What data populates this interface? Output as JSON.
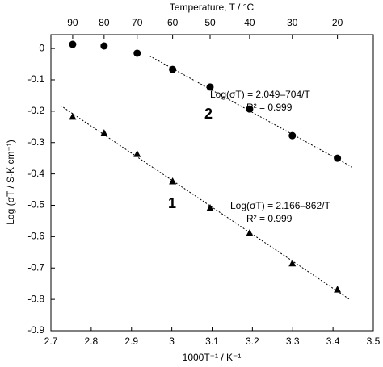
{
  "chart_data": {
    "type": "scatter",
    "x_label": "1000T⁻¹ / K⁻¹",
    "y_label": "Log (σT / S·K cm⁻¹)",
    "x2_label": "Temperature, T / °C",
    "xlim": [
      2.7,
      3.5
    ],
    "ylim": [
      -0.9,
      0.044
    ],
    "xticks": [
      2.7,
      2.8,
      2.9,
      3,
      3.1,
      3.2,
      3.3,
      3.4,
      3.5
    ],
    "yticks": [
      0,
      -0.1,
      -0.2,
      -0.3,
      -0.4,
      -0.5,
      -0.6,
      -0.7,
      -0.8,
      -0.9
    ],
    "x2ticks": [
      {
        "value": 2.754,
        "label": "90"
      },
      {
        "value": 2.832,
        "label": "80"
      },
      {
        "value": 2.914,
        "label": "70"
      },
      {
        "value": 3.002,
        "label": "60"
      },
      {
        "value": 3.095,
        "label": "50"
      },
      {
        "value": 3.193,
        "label": "40"
      },
      {
        "value": 3.299,
        "label": "30"
      },
      {
        "value": 3.411,
        "label": "20"
      }
    ],
    "series": [
      {
        "name": "1",
        "marker": "triangle",
        "color": "#000000",
        "x": [
          2.754,
          2.832,
          2.914,
          3.002,
          3.095,
          3.193,
          3.299,
          3.411
        ],
        "values": [
          -0.218,
          -0.27,
          -0.337,
          -0.424,
          -0.509,
          -0.589,
          -0.686,
          -0.769
        ],
        "fit": {
          "x": [
            2.724,
            3.441
          ],
          "y": [
            -0.182,
            -0.8
          ]
        },
        "equation": "Log(σT) = 2.166–862/T",
        "r2": "R² = 0.999"
      },
      {
        "name": "2",
        "marker": "circle",
        "color": "#000000",
        "x": [
          2.754,
          2.832,
          2.914,
          3.002,
          3.095,
          3.193,
          3.299,
          3.411
        ],
        "values": [
          0.013,
          0.008,
          -0.015,
          -0.067,
          -0.123,
          -0.193,
          -0.278,
          -0.35
        ],
        "fit": {
          "x": [
            2.945,
            3.45
          ],
          "y": [
            -0.024,
            -0.38
          ]
        },
        "equation": "Log(σT) = 2.049–704/T",
        "r2": "R² = 0.999"
      }
    ]
  }
}
